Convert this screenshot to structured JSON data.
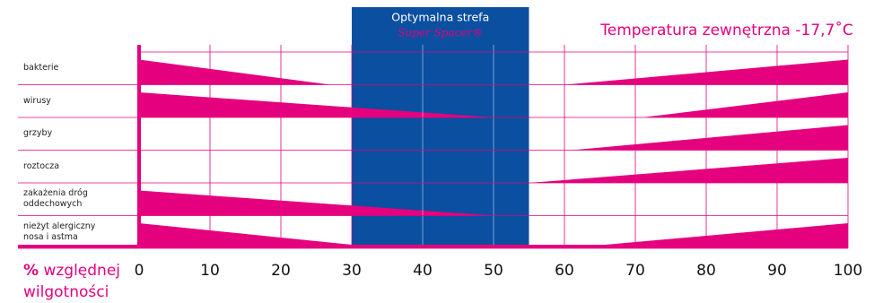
{
  "chart_data": {
    "type": "wedge-range",
    "zone_title": "Optymalna strefa",
    "zone_brand": "Super Spacer®",
    "zone": [
      30,
      55
    ],
    "annotation": "Temperatura zewnętrzna -17,7˚C",
    "xlabel_symbol": "%",
    "xlabel": "względnej wilgotności",
    "xlim": [
      0,
      100
    ],
    "xticks": [
      0,
      10,
      20,
      30,
      40,
      50,
      60,
      70,
      80,
      90,
      100
    ],
    "grid": true,
    "color": "#e5007e",
    "zone_color": "#0a4fa0",
    "categories": [
      "bakterie",
      "wirusy",
      "grzyby",
      "roztocza",
      "zakażenia dróg oddechowych",
      "nieżyt alergiczny nosa i astma"
    ],
    "series": [
      {
        "name": "decrease_until",
        "values": [
          27,
          50,
          null,
          null,
          50,
          35
        ]
      },
      {
        "name": "increase_from",
        "values": [
          60,
          71,
          61,
          55,
          null,
          60
        ]
      }
    ]
  }
}
